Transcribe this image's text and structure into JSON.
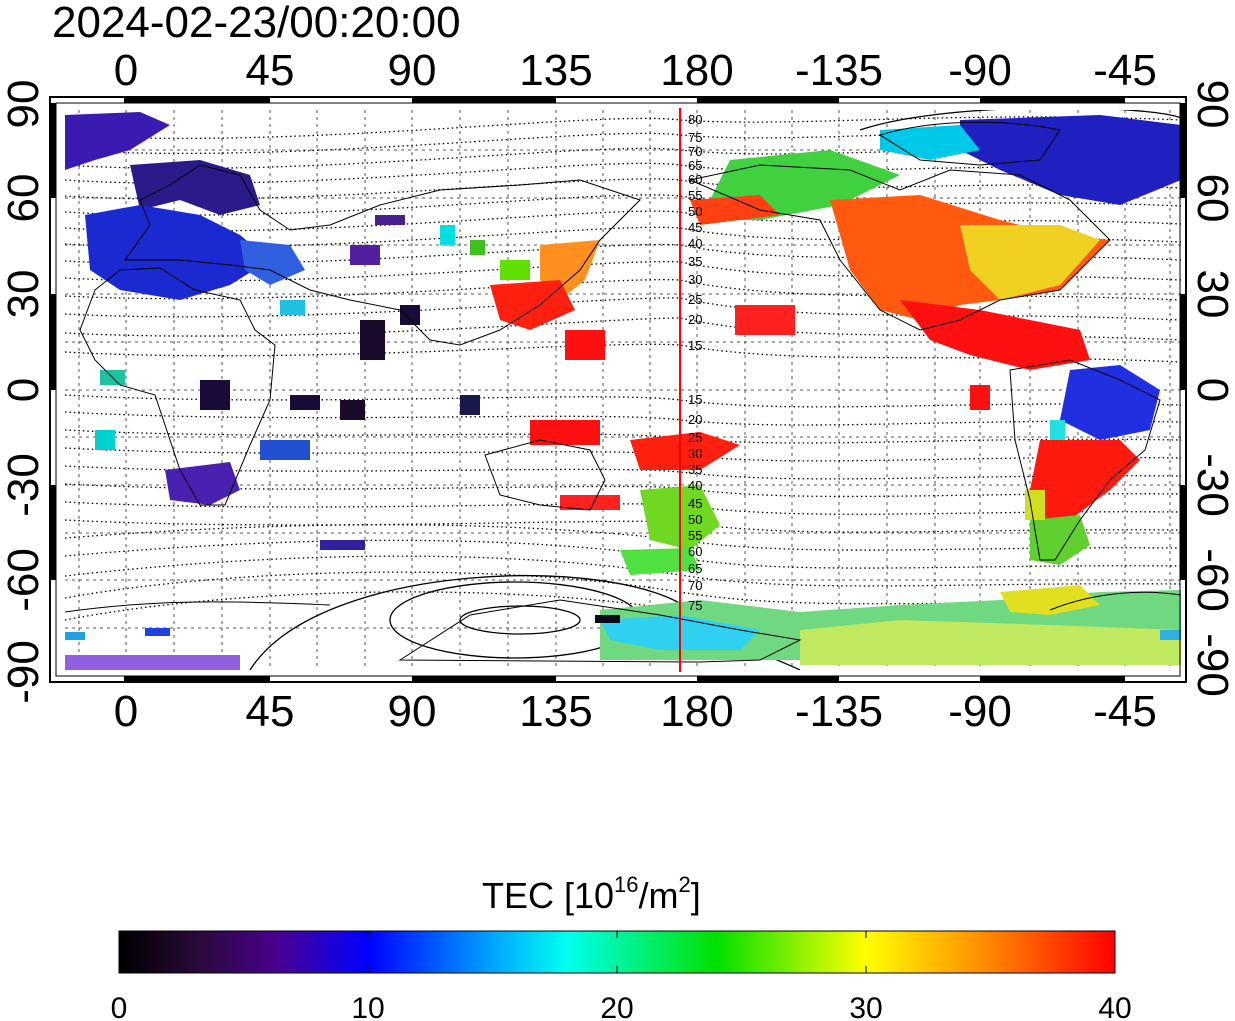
{
  "timestamp": "2024-02-23/00:20:00",
  "top_axis_labels": [
    "0",
    "45",
    "90",
    "135",
    "180",
    "-135",
    "-90",
    "-45"
  ],
  "bottom_axis_labels": [
    "0",
    "45",
    "90",
    "135",
    "180",
    "-135",
    "-90",
    "-45"
  ],
  "left_axis_labels": [
    "90",
    "60",
    "30",
    "0",
    "-30",
    "-60",
    "-90"
  ],
  "right_axis_labels": [
    "90",
    "60",
    "30",
    "0",
    "-30",
    "-60",
    "-90"
  ],
  "contour_labels_north": [
    "80",
    "75",
    "70",
    "65",
    "60",
    "55",
    "50",
    "45",
    "40",
    "35",
    "30",
    "25",
    "20",
    "15"
  ],
  "contour_labels_south": [
    "15",
    "20",
    "25",
    "30",
    "35",
    "40",
    "45",
    "50",
    "55",
    "60",
    "65",
    "70",
    "75"
  ],
  "colorbar": {
    "title": "TEC  [10",
    "title_sup": "16",
    "title_mid": "/m",
    "title_sup2": "2",
    "title_end": "]",
    "tick_labels": [
      "0",
      "10",
      "20",
      "30",
      "40"
    ],
    "min": 0,
    "max": 40
  },
  "colors": {
    "meridian_line": "#ff0000",
    "frame": "#000000"
  }
}
